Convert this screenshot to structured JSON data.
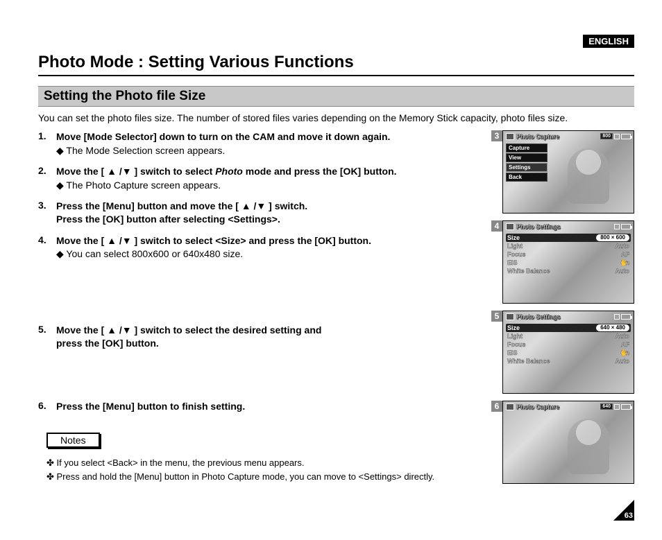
{
  "language_badge": "ENGLISH",
  "page_title": "Photo Mode : Setting Various Functions",
  "section_heading": "Setting the Photo file Size",
  "intro": "You can set the photo files size. The number of stored files varies depending on the Memory Stick capacity, photo files size.",
  "steps": [
    {
      "num": "1.",
      "head_before": "Move [Mode Selector] down to turn on the CAM and move it down again.",
      "italic": "",
      "head_after": "",
      "sub": "The Mode Selection screen appears."
    },
    {
      "num": "2.",
      "head_before": "Move the [ ▲ /▼ ] switch to select ",
      "italic": "Photo",
      "head_after": " mode and press the [OK] button.",
      "sub": "The Photo Capture screen appears."
    },
    {
      "num": "3.",
      "head_before": "Press the [Menu] button and move the [ ▲ /▼ ] switch.\nPress the [OK] button after selecting <Settings>.",
      "italic": "",
      "head_after": "",
      "sub": ""
    },
    {
      "num": "4.",
      "head_before": "Move the [ ▲ /▼ ] switch to select <Size> and press the [OK] button.",
      "italic": "",
      "head_after": "",
      "sub": "You can select 800x600 or 640x480 size."
    },
    {
      "num": "5.",
      "head_before": "Move the [ ▲ /▼ ] switch to select the desired setting and\npress the [OK] button.",
      "italic": "",
      "head_after": "",
      "sub": ""
    },
    {
      "num": "6.",
      "head_before": "Press the [Menu] button to finish setting.",
      "italic": "",
      "head_after": "",
      "sub": ""
    }
  ],
  "notes_label": "Notes",
  "notes": [
    "If you select <Back> in the menu, the previous menu appears.",
    "Press and hold the [Menu] button in Photo Capture mode, you can move to <Settings> directly."
  ],
  "screens": {
    "s3": {
      "num": "3",
      "title": "Photo Capture",
      "badge": "800",
      "menu": [
        "Capture",
        "View",
        "Settings",
        "Back"
      ],
      "selected": 2
    },
    "s4": {
      "num": "4",
      "title": "Photo Settings",
      "rows": [
        {
          "label": "Size",
          "value": "800 × 600",
          "sel": true
        },
        {
          "label": "Light",
          "value": "Auto"
        },
        {
          "label": "Focus",
          "value": "AF"
        },
        {
          "label": "EIS",
          "value": "On",
          "hand": true
        },
        {
          "label": "White Balance",
          "value": "Auto"
        }
      ]
    },
    "s5": {
      "num": "5",
      "title": "Photo Settings",
      "rows": [
        {
          "label": "Size",
          "value": "640 × 480",
          "sel": true
        },
        {
          "label": "Light",
          "value": "Auto"
        },
        {
          "label": "Focus",
          "value": "AF"
        },
        {
          "label": "EIS",
          "value": "On",
          "hand": true
        },
        {
          "label": "White Balance",
          "value": "Auto"
        }
      ]
    },
    "s6": {
      "num": "6",
      "title": "Photo Capture",
      "badge": "640"
    }
  },
  "page_number": "63",
  "colors": {
    "section_bg": "#c8c8c8",
    "badge_bg": "#000000"
  }
}
